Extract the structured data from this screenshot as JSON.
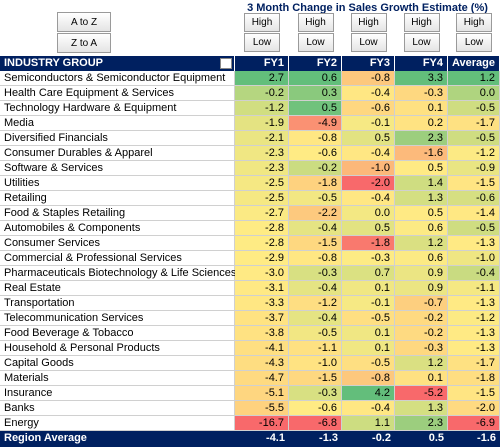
{
  "controls": {
    "sort_buttons": [
      "A to Z",
      "Z to A"
    ],
    "filter_buttons": [
      "High",
      "Low"
    ]
  },
  "title": "3 Month Change in Sales Growth Estimate (%)",
  "table": {
    "columns": [
      "INDUSTRY GROUP",
      "FY1",
      "FY2",
      "FY3",
      "FY4",
      "Average"
    ],
    "rows": [
      [
        "Semiconductors & Semiconductor Equipment",
        "2.7",
        "0.6",
        "-0.8",
        "3.3",
        "1.2"
      ],
      [
        "Health Care Equipment & Services",
        "-0.2",
        "0.3",
        "-0.4",
        "-0.3",
        "0.0"
      ],
      [
        "Technology Hardware & Equipment",
        "-1.2",
        "0.5",
        "-0.6",
        "0.1",
        "-0.5"
      ],
      [
        "Media",
        "-1.9",
        "-4.9",
        "-0.1",
        "0.2",
        "-1.7"
      ],
      [
        "Diversified Financials",
        "-2.1",
        "-0.8",
        "0.5",
        "2.3",
        "-0.5"
      ],
      [
        "Consumer Durables & Apparel",
        "-2.3",
        "-0.6",
        "-0.4",
        "-1.6",
        "-1.2"
      ],
      [
        "Software & Services",
        "-2.3",
        "-0.2",
        "-1.0",
        "0.5",
        "-0.9"
      ],
      [
        "Utilities",
        "-2.5",
        "-1.8",
        "-2.0",
        "1.4",
        "-1.5"
      ],
      [
        "Retailing",
        "-2.5",
        "-0.5",
        "-0.4",
        "1.3",
        "-0.6"
      ],
      [
        "Food & Staples Retailing",
        "-2.7",
        "-2.2",
        "0.0",
        "0.5",
        "-1.4"
      ],
      [
        "Automobiles & Components",
        "-2.8",
        "-0.4",
        "0.5",
        "0.6",
        "-0.5"
      ],
      [
        "Consumer Services",
        "-2.8",
        "-1.5",
        "-1.8",
        "1.2",
        "-1.3"
      ],
      [
        "Commercial & Professional Services",
        "-2.9",
        "-0.8",
        "-0.3",
        "0.6",
        "-1.0"
      ],
      [
        "Pharmaceuticals Biotechnology & Life Sciences",
        "-3.0",
        "-0.3",
        "0.7",
        "0.9",
        "-0.4"
      ],
      [
        "Real Estate",
        "-3.1",
        "-0.4",
        "0.1",
        "0.9",
        "-1.1"
      ],
      [
        "Transportation",
        "-3.3",
        "-1.2",
        "-0.1",
        "-0.7",
        "-1.3"
      ],
      [
        "Telecommunication Services",
        "-3.7",
        "-0.4",
        "-0.5",
        "-0.2",
        "-1.2"
      ],
      [
        "Food Beverage & Tobacco",
        "-3.8",
        "-0.5",
        "0.1",
        "-0.2",
        "-1.3"
      ],
      [
        "Household & Personal Products",
        "-4.1",
        "-1.1",
        "0.1",
        "-0.3",
        "-1.3"
      ],
      [
        "Capital Goods",
        "-4.3",
        "-1.0",
        "-0.5",
        "1.2",
        "-1.7"
      ],
      [
        "Materials",
        "-4.7",
        "-1.5",
        "-0.8",
        "0.1",
        "-1.8"
      ],
      [
        "Insurance",
        "-5.1",
        "-0.3",
        "4.2",
        "-5.2",
        "-1.5"
      ],
      [
        "Banks",
        "-5.5",
        "-0.6",
        "-0.4",
        "1.3",
        "-2.0"
      ],
      [
        "Energy",
        "-16.7",
        "-6.8",
        "1.1",
        "2.3",
        "-6.9"
      ]
    ],
    "footer": [
      "Region Average",
      "-4.1",
      "-1.3",
      "-0.2",
      "0.5",
      "-1.6"
    ]
  }
}
